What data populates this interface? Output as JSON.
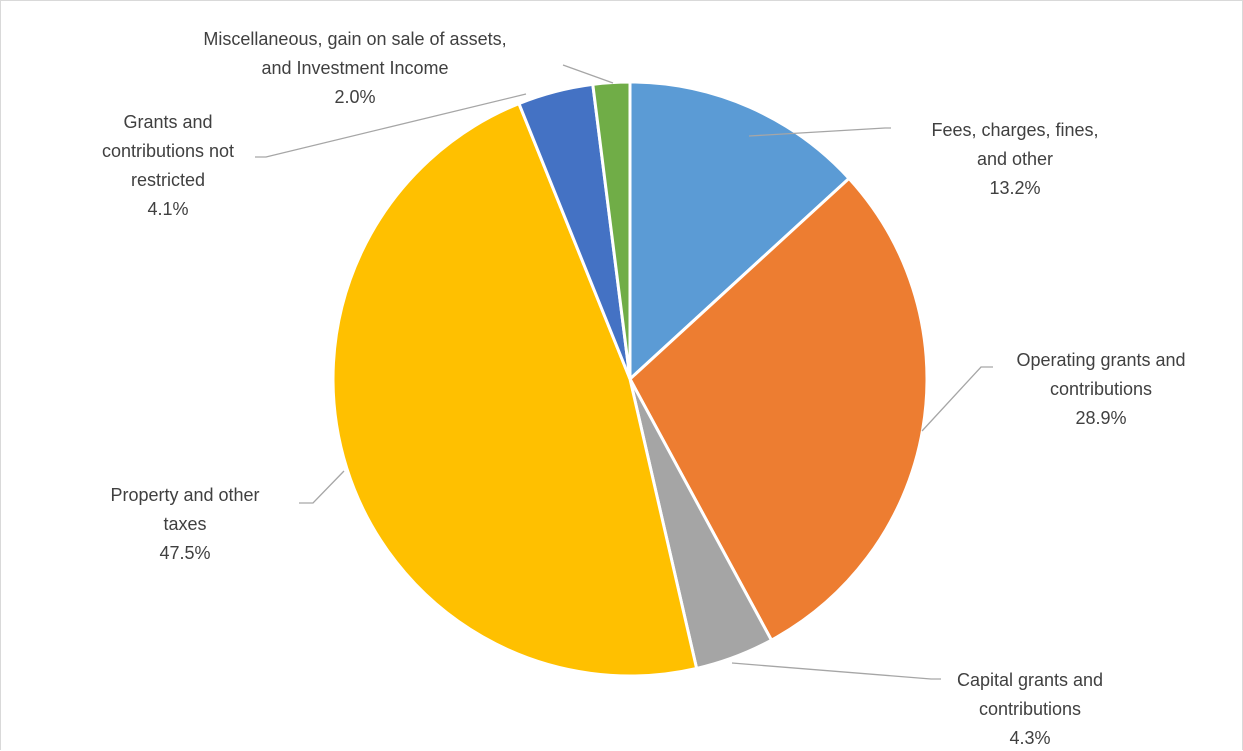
{
  "chart_data": {
    "type": "pie",
    "title": "",
    "legend": "none",
    "slices": [
      {
        "label_lines": [
          "Fees, charges, fines,",
          "and other"
        ],
        "value": 13.2,
        "value_label": "13.2%",
        "color": "#5b9bd5"
      },
      {
        "label_lines": [
          "Operating grants and",
          "contributions"
        ],
        "value": 28.9,
        "value_label": "28.9%",
        "color": "#ed7d31"
      },
      {
        "label_lines": [
          "Capital grants and",
          "contributions"
        ],
        "value": 4.3,
        "value_label": "4.3%",
        "color": "#a5a5a5"
      },
      {
        "label_lines": [
          "Property and other",
          "taxes"
        ],
        "value": 47.5,
        "value_label": "47.5%",
        "color": "#ffc000"
      },
      {
        "label_lines": [
          "Grants and",
          "contributions not",
          "restricted"
        ],
        "value": 4.1,
        "value_label": "4.1%",
        "color": "#4472c4"
      },
      {
        "label_lines": [
          "Miscellaneous, gain on sale of assets,",
          "and Investment Income"
        ],
        "value": 2.0,
        "value_label": "2.0%",
        "color": "#70ad47"
      }
    ]
  }
}
